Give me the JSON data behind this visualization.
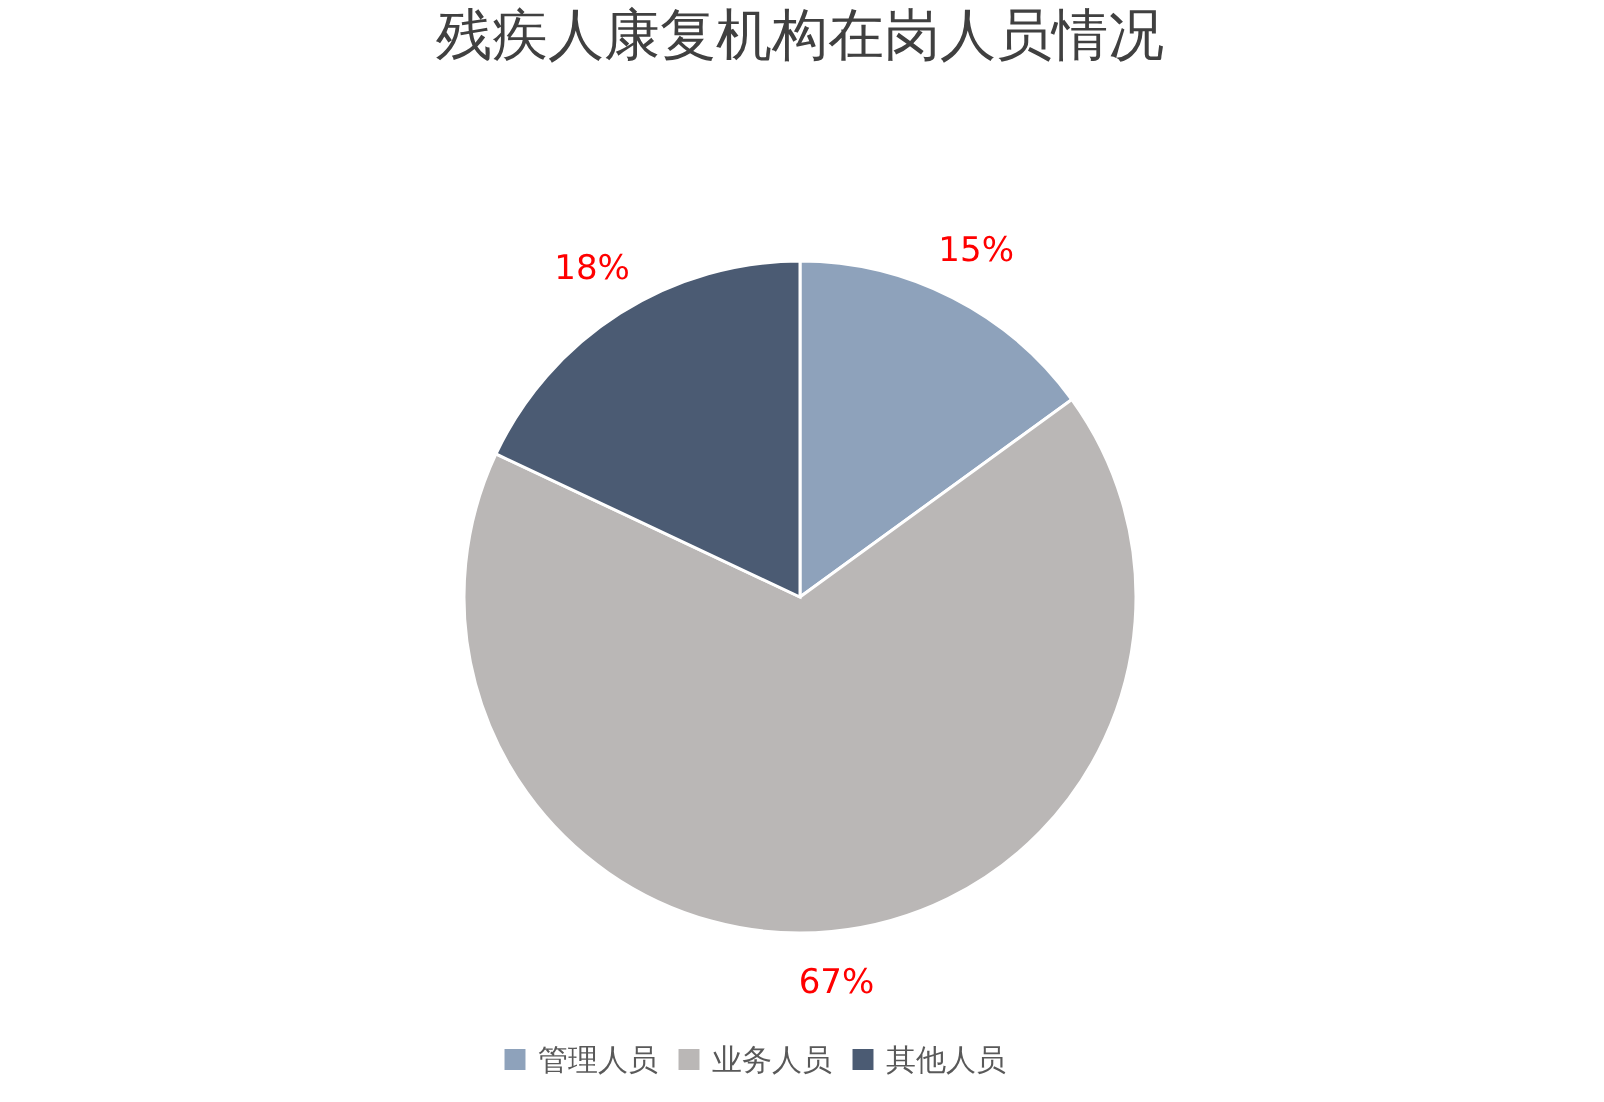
{
  "chart_data": {
    "type": "pie",
    "title": "残疾人康复机构在岗人员情况",
    "categories": [
      "管理人员",
      "业务人员",
      "其他人员"
    ],
    "values": [
      15,
      67,
      18
    ],
    "colors": [
      "#8ea2bb",
      "#bab7b6",
      "#4b5b73"
    ],
    "value_labels": [
      "15%",
      "67%",
      "18%"
    ],
    "legend": "bottom"
  }
}
